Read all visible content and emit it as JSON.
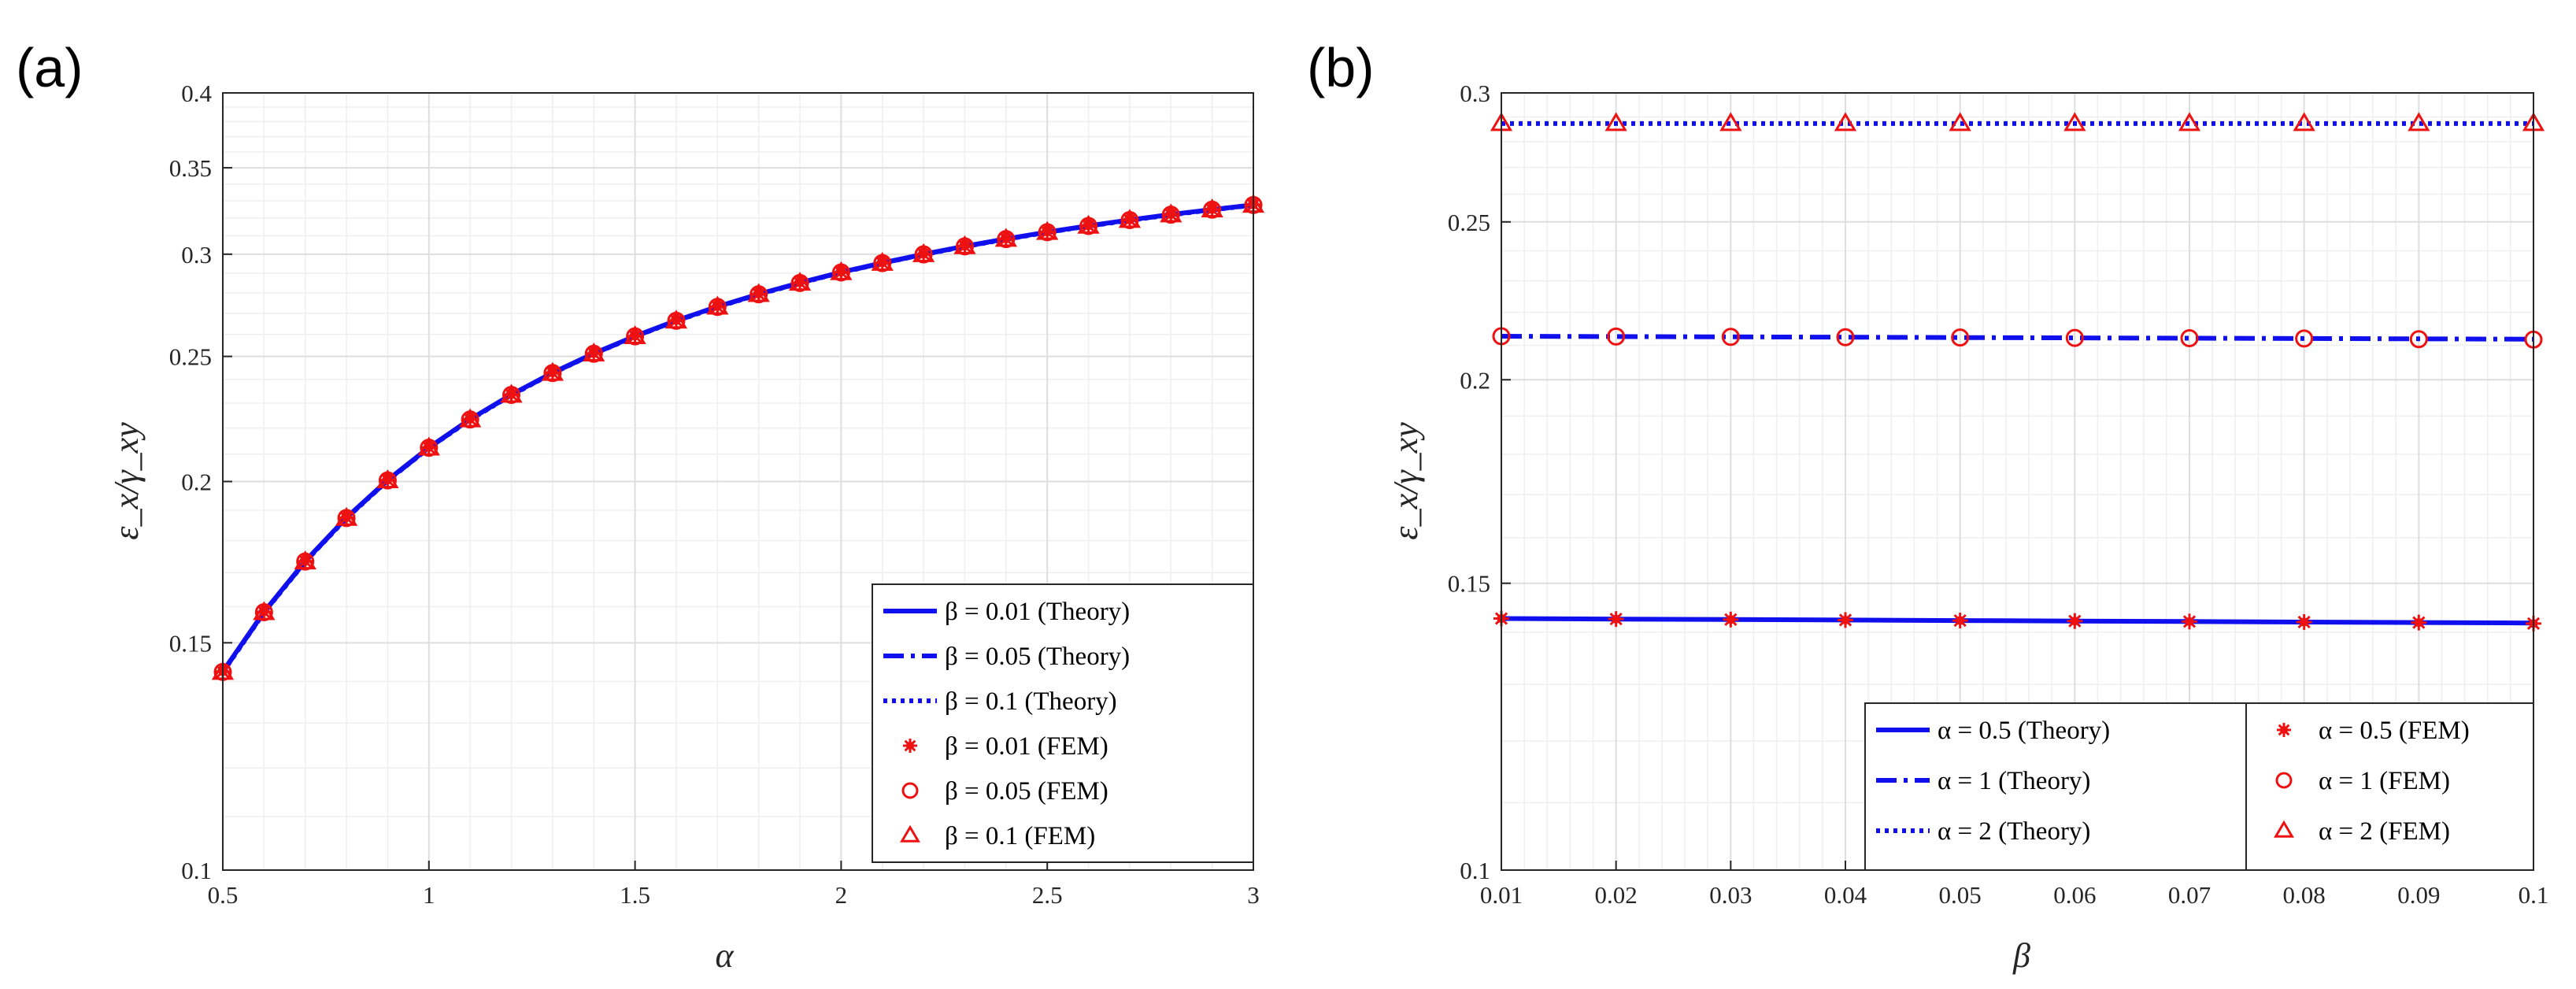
{
  "colors": {
    "theory": "#1010ee",
    "fem": "#ee1111",
    "grid_major": "#dedede",
    "grid_minor": "#efefef",
    "axis": "#262626"
  },
  "chart_data": [
    {
      "panel_label": "(a)",
      "type": "line",
      "xlabel": "α",
      "ylabel": "ε_x/γ_xy",
      "xscale": "linear",
      "yscale": "log",
      "xlim": [
        0.5,
        3
      ],
      "ylim": [
        0.1,
        0.4
      ],
      "x_ticks": [
        0.5,
        1,
        1.5,
        2,
        2.5,
        3
      ],
      "x_tick_labels": [
        "0.5",
        "1",
        "1.5",
        "2",
        "2.5",
        "3"
      ],
      "y_ticks": [
        0.1,
        0.15,
        0.2,
        0.25,
        0.3,
        0.35,
        0.4
      ],
      "y_tick_labels": [
        "0.1",
        "0.15",
        "0.2",
        "0.25",
        "0.3",
        "0.35",
        "0.4"
      ],
      "grid": true,
      "legend_position": "bottom-right",
      "x": [
        0.5,
        0.6,
        0.7,
        0.8,
        0.9,
        1.0,
        1.1,
        1.2,
        1.3,
        1.4,
        1.5,
        1.6,
        1.7,
        1.8,
        1.9,
        2.0,
        2.1,
        2.2,
        2.3,
        2.4,
        2.5,
        2.6,
        2.7,
        2.8,
        2.9,
        3.0
      ],
      "series": [
        {
          "name": "β = 0.01 (Theory)",
          "kind": "line",
          "dash": "solid",
          "values": [
            0.1425,
            0.1585,
            0.1735,
            0.1875,
            0.2005,
            0.2125,
            0.2235,
            0.2335,
            0.2428,
            0.2513,
            0.2592,
            0.2665,
            0.2732,
            0.2794,
            0.2851,
            0.2905,
            0.2954,
            0.3,
            0.3043,
            0.3083,
            0.3121,
            0.3156,
            0.3189,
            0.322,
            0.3249,
            0.3276
          ]
        },
        {
          "name": "β = 0.05 (Theory)",
          "kind": "line",
          "dash": "dashdot",
          "values": [
            0.1424,
            0.1584,
            0.1734,
            0.1874,
            0.2004,
            0.2124,
            0.2234,
            0.2334,
            0.2427,
            0.2512,
            0.2591,
            0.2664,
            0.2731,
            0.2793,
            0.285,
            0.2904,
            0.2953,
            0.2999,
            0.3042,
            0.3082,
            0.312,
            0.3155,
            0.3188,
            0.3219,
            0.3248,
            0.3275
          ]
        },
        {
          "name": "β = 0.1 (Theory)",
          "kind": "line",
          "dash": "dotted",
          "values": [
            0.1423,
            0.1583,
            0.1733,
            0.1873,
            0.2003,
            0.2123,
            0.2233,
            0.2333,
            0.2426,
            0.2511,
            0.259,
            0.2663,
            0.273,
            0.2792,
            0.2849,
            0.2903,
            0.2952,
            0.2998,
            0.3041,
            0.3081,
            0.3119,
            0.3154,
            0.3187,
            0.3218,
            0.3247,
            0.3274
          ]
        },
        {
          "name": "β = 0.01 (FEM)",
          "kind": "marker",
          "marker": "asterisk",
          "values": [
            0.1425,
            0.1585,
            0.1735,
            0.1875,
            0.2005,
            0.2125,
            0.2235,
            0.2335,
            0.2428,
            0.2513,
            0.2592,
            0.2665,
            0.2732,
            0.2794,
            0.2851,
            0.2905,
            0.2954,
            0.3,
            0.3043,
            0.3083,
            0.3121,
            0.3156,
            0.3189,
            0.322,
            0.3249,
            0.3276
          ]
        },
        {
          "name": "β = 0.05 (FEM)",
          "kind": "marker",
          "marker": "circle",
          "values": [
            0.1424,
            0.1584,
            0.1734,
            0.1874,
            0.2004,
            0.2124,
            0.2234,
            0.2334,
            0.2427,
            0.2512,
            0.2591,
            0.2664,
            0.2731,
            0.2793,
            0.285,
            0.2904,
            0.2953,
            0.2999,
            0.3042,
            0.3082,
            0.312,
            0.3155,
            0.3188,
            0.3219,
            0.3248,
            0.3275
          ]
        },
        {
          "name": "β = 0.1 (FEM)",
          "kind": "marker",
          "marker": "triangle",
          "values": [
            0.1423,
            0.1583,
            0.1733,
            0.1873,
            0.2003,
            0.2123,
            0.2233,
            0.2333,
            0.2426,
            0.2511,
            0.259,
            0.2663,
            0.273,
            0.2792,
            0.2849,
            0.2903,
            0.2952,
            0.2998,
            0.3041,
            0.3081,
            0.3119,
            0.3154,
            0.3187,
            0.3218,
            0.3247,
            0.3274
          ]
        }
      ]
    },
    {
      "panel_label": "(b)",
      "type": "line",
      "xlabel": "β",
      "ylabel": "ε_x/γ_xy",
      "xscale": "linear",
      "yscale": "log",
      "xlim": [
        0.01,
        0.1
      ],
      "ylim": [
        0.1,
        0.3
      ],
      "x_ticks": [
        0.01,
        0.02,
        0.03,
        0.04,
        0.05,
        0.06,
        0.07,
        0.08,
        0.09,
        0.1
      ],
      "x_tick_labels": [
        "0.01",
        "0.02",
        "0.03",
        "0.04",
        "0.05",
        "0.06",
        "0.07",
        "0.08",
        "0.09",
        "0.1"
      ],
      "y_ticks": [
        0.1,
        0.15,
        0.2,
        0.25,
        0.3
      ],
      "y_tick_labels": [
        "0.1",
        "0.15",
        "0.2",
        "0.25",
        "0.3"
      ],
      "grid": true,
      "legend_position": "bottom-right",
      "x": [
        0.01,
        0.02,
        0.03,
        0.04,
        0.05,
        0.06,
        0.07,
        0.08,
        0.09,
        0.1
      ],
      "series": [
        {
          "name": "α = 0.5 (Theory)",
          "kind": "line",
          "dash": "solid",
          "values": [
            0.1427,
            0.1426,
            0.1425,
            0.1424,
            0.1423,
            0.1422,
            0.1421,
            0.142,
            0.1419,
            0.1418
          ]
        },
        {
          "name": "α = 1 (Theory)",
          "kind": "line",
          "dash": "dashdot",
          "values": [
            0.2127,
            0.2126,
            0.2125,
            0.2124,
            0.2123,
            0.2122,
            0.2121,
            0.212,
            0.2119,
            0.2118
          ]
        },
        {
          "name": "α = 2 (Theory)",
          "kind": "line",
          "dash": "dotted",
          "values": [
            0.2873,
            0.2873,
            0.2873,
            0.2873,
            0.2873,
            0.2873,
            0.2873,
            0.2873,
            0.2873,
            0.2873
          ]
        },
        {
          "name": "α = 0.5 (FEM)",
          "kind": "marker",
          "marker": "asterisk",
          "values": [
            0.1427,
            0.1426,
            0.1425,
            0.1424,
            0.1423,
            0.1422,
            0.1421,
            0.142,
            0.1419,
            0.1417
          ]
        },
        {
          "name": "α = 1 (FEM)",
          "kind": "marker",
          "marker": "circle",
          "values": [
            0.2127,
            0.2126,
            0.2125,
            0.2124,
            0.2123,
            0.2122,
            0.2121,
            0.212,
            0.2118,
            0.2117
          ]
        },
        {
          "name": "α = 2 (FEM)",
          "kind": "marker",
          "marker": "triangle",
          "values": [
            0.2873,
            0.2873,
            0.2873,
            0.2873,
            0.2873,
            0.2873,
            0.2873,
            0.2873,
            0.2873,
            0.2873
          ]
        }
      ]
    }
  ]
}
